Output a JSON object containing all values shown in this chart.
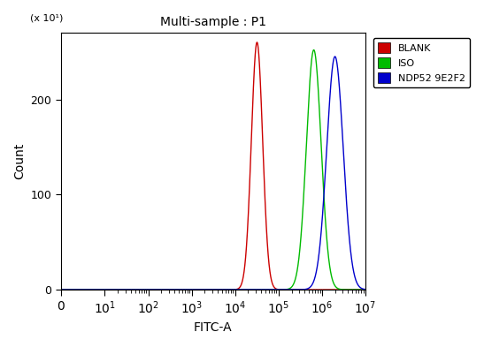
{
  "title": "Multi-sample : P1",
  "xlabel": "FITC-A",
  "ylabel": "Count",
  "y_multiplier_label": "(x 10¹)",
  "ylim": [
    0,
    270
  ],
  "yticks": [
    0,
    100,
    200
  ],
  "xlim_log": [
    1,
    10000000.0
  ],
  "curves": [
    {
      "label": "BLANK",
      "color": "#cc0000",
      "peak_x": 32000.0,
      "peak_y": 260,
      "sigma": 0.13
    },
    {
      "label": "ISO",
      "color": "#00bb00",
      "peak_x": 650000.0,
      "peak_y": 252,
      "sigma": 0.17
    },
    {
      "label": "NDP52 9E2F2",
      "color": "#0000cc",
      "peak_x": 2000000.0,
      "peak_y": 245,
      "sigma": 0.19
    }
  ],
  "background_color": "#ffffff",
  "plot_bg_color": "#ffffff",
  "figsize": [
    5.47,
    3.93
  ],
  "dpi": 100,
  "legend_labels": [
    "BLANK",
    "ISO",
    "NDP52 9E2F2"
  ],
  "legend_colors": [
    "#cc0000",
    "#00bb00",
    "#0000cc"
  ]
}
